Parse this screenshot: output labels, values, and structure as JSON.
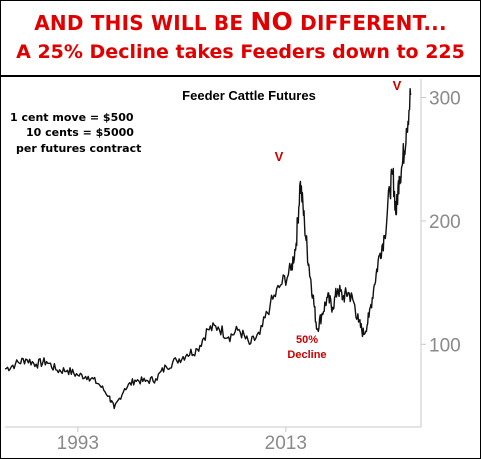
{
  "headline": {
    "line1_a": "AND THIS WILL BE ",
    "line1_b": "NO",
    "line1_c": " DIFFERENT...",
    "line2": "A 25% Decline takes Feeders down to 225"
  },
  "notes": {
    "line1": "1 cent move = $500",
    "line2": "10 cents = $5000",
    "line3": "per futures contract"
  },
  "chart_data": {
    "type": "line",
    "title": "Feeder Cattle Futures",
    "xlabel": "",
    "ylabel": "",
    "x_ticks": [
      "1993",
      "2013"
    ],
    "y_ticks": [
      100,
      200,
      300
    ],
    "xlim": [
      1986,
      2026
    ],
    "ylim": [
      33,
      315
    ],
    "series": [
      {
        "x": [
          1986.0,
          1987.0,
          1988.0,
          1989.0,
          1990.0,
          1991.0,
          1992.0,
          1993.0,
          1994.0,
          1995.0,
          1996.0,
          1996.5,
          1997.5,
          1998.5,
          1999.5,
          2000.5,
          2001.5,
          2002.5,
          2003.5,
          2004.5,
          2005.5,
          2006.5,
          2007.5,
          2008.5,
          2009.5,
          2010.5,
          2011.5,
          2012.5,
          2013.5,
          2014.0,
          2014.4,
          2014.8,
          2015.2,
          2015.6,
          2016.0,
          2016.5,
          2017.0,
          2017.5,
          2018.0,
          2018.5,
          2019.0,
          2019.5,
          2020.0,
          2020.5,
          2021.0,
          2021.5,
          2022.0,
          2022.5,
          2023.0,
          2023.3,
          2023.6,
          2023.9,
          2024.2,
          2024.6,
          2025.0
        ],
        "values": [
          80,
          84,
          88,
          84,
          86,
          79,
          79,
          75,
          74,
          68,
          58,
          48,
          64,
          71,
          70,
          72,
          82,
          87,
          92,
          96,
          112,
          114,
          106,
          112,
          100,
          108,
          132,
          148,
          160,
          182,
          232,
          198,
          165,
          140,
          112,
          125,
          138,
          130,
          145,
          138,
          142,
          135,
          118,
          108,
          122,
          148,
          172,
          188,
          225,
          238,
          205,
          236,
          245,
          275,
          302
        ]
      }
    ]
  },
  "annotations": {
    "peak1_marker": "V",
    "peak2_marker": "V",
    "decline_line1": "50%",
    "decline_line2": "Decline"
  },
  "colors": {
    "headline": "#e00000",
    "annotation": "#cc0000",
    "line": "#111111",
    "tick_text": "#8a8a8a",
    "axis": "#c8c8c8"
  }
}
